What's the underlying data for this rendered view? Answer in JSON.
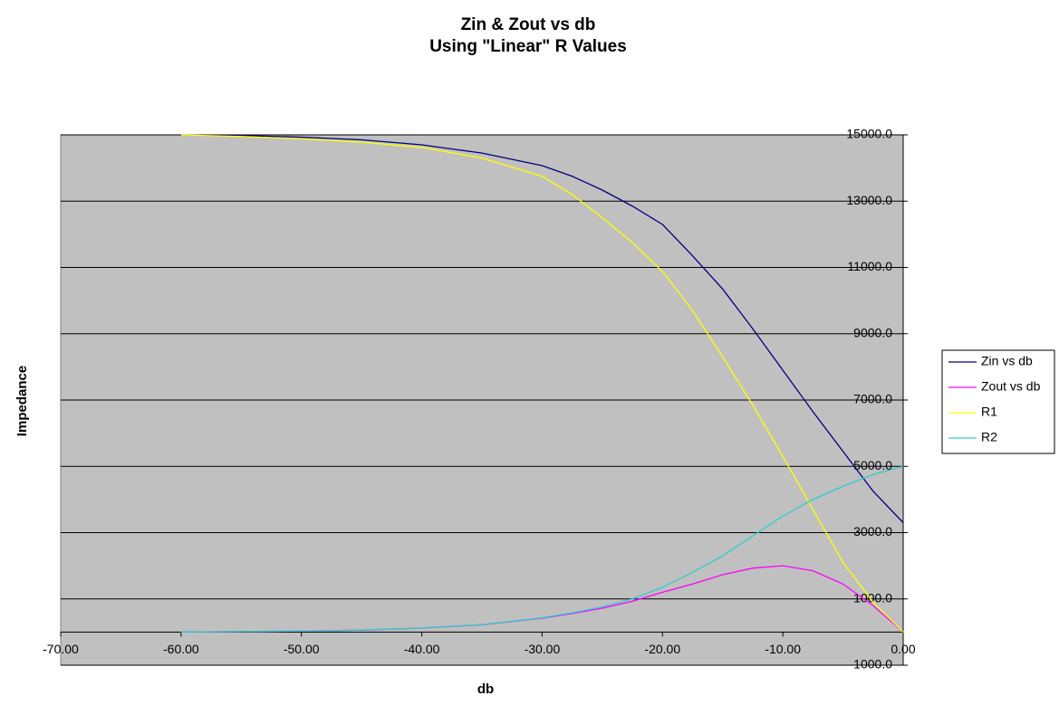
{
  "chart_data": {
    "type": "line",
    "title": "Zin & Zout vs db",
    "subtitle": "Using \"Linear\" R Values",
    "x_label": "db",
    "y_label": "Impedance",
    "x": [
      -60,
      -55,
      -50,
      -45,
      -40,
      -35,
      -30,
      -27.5,
      -25,
      -22.5,
      -20,
      -17.5,
      -15,
      -12.5,
      -10,
      -7.5,
      -5,
      -2.5,
      0
    ],
    "series": [
      {
        "name": "Zin vs db",
        "color": "#000080",
        "values": [
          15000,
          14980,
          14930,
          14850,
          14700,
          14450,
          14072,
          13750,
          13334,
          12850,
          12297,
          11350,
          10350,
          9150,
          7900,
          6650,
          5450,
          4250,
          3300
        ]
      },
      {
        "name": "Zout vs db",
        "color": "#ff00ff",
        "values": [
          0,
          15,
          30,
          60,
          120,
          220,
          420,
          560,
          720,
          930,
          1200,
          1450,
          1730,
          1930,
          2000,
          1850,
          1450,
          800,
          0
        ]
      },
      {
        "name": "R1",
        "color": "#ffff00",
        "values": [
          15000,
          14950,
          14880,
          14780,
          14620,
          14300,
          13750,
          13200,
          12500,
          11750,
          10880,
          9700,
          8300,
          6850,
          5300,
          3700,
          2100,
          900,
          0
        ]
      },
      {
        "name": "R2",
        "color": "#33cccc",
        "values": [
          0,
          15,
          30,
          60,
          120,
          220,
          430,
          580,
          760,
          1000,
          1350,
          1800,
          2300,
          2900,
          3500,
          4000,
          4400,
          4750,
          5000
        ]
      }
    ],
    "xlim": [
      -70,
      0
    ],
    "xticks": [
      {
        "value": -70,
        "label": "-70.00"
      },
      {
        "value": -60,
        "label": "-60.00"
      },
      {
        "value": -50,
        "label": "-50.00"
      },
      {
        "value": -40,
        "label": "-40.00"
      },
      {
        "value": -30,
        "label": "-30.00"
      },
      {
        "value": -20,
        "label": "-20.00"
      },
      {
        "value": -10,
        "label": "-10.00"
      },
      {
        "value": 0,
        "label": "0.00"
      }
    ],
    "ylim": [
      -1000,
      15000
    ],
    "yticks": [
      {
        "value": 15000,
        "label": "15000.0"
      },
      {
        "value": 13000,
        "label": "13000.0"
      },
      {
        "value": 11000,
        "label": "11000.0"
      },
      {
        "value": 9000,
        "label": "9000.0"
      },
      {
        "value": 7000,
        "label": "7000.0"
      },
      {
        "value": 5000,
        "label": "5000.0"
      },
      {
        "value": 3000,
        "label": "3000.0"
      },
      {
        "value": 1000,
        "label": "1000.0"
      },
      {
        "value": -1000,
        "label": "-1000.0"
      }
    ],
    "grid": true,
    "legend": "right"
  }
}
